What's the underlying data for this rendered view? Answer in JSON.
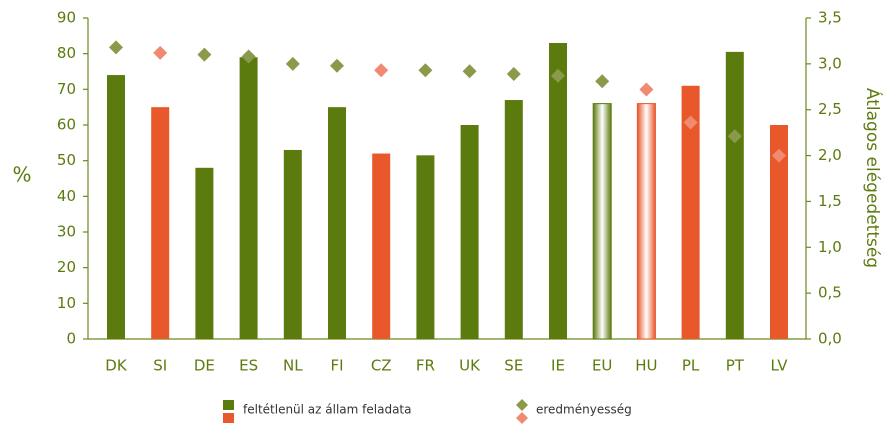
{
  "chart_data": {
    "type": "bar",
    "categories": [
      "DK",
      "SI",
      "DE",
      "ES",
      "NL",
      "FI",
      "CZ",
      "FR",
      "UK",
      "SE",
      "IE",
      "EU",
      "HU",
      "PL",
      "PT",
      "LV"
    ],
    "y_label": "%",
    "y2_label": "Átlagos elégedettség",
    "ylim": [
      0,
      90
    ],
    "yticks": [
      0,
      10,
      20,
      30,
      40,
      50,
      60,
      70,
      80,
      90
    ],
    "y2lim": [
      0,
      3.5
    ],
    "y2ticks": [
      {
        "value": 0,
        "label": "0,0"
      },
      {
        "value": 0.5,
        "label": "0,5"
      },
      {
        "value": 1,
        "label": "1,0"
      },
      {
        "value": 1.5,
        "label": "1,5"
      },
      {
        "value": 2,
        "label": "2,0"
      },
      {
        "value": 2.5,
        "label": "2,5"
      },
      {
        "value": 3,
        "label": "3,0"
      },
      {
        "value": 3.5,
        "label": "3,5"
      }
    ],
    "series": [
      {
        "name": "feltétlenül az állam feladata",
        "type": "bar",
        "legend_colors": [
          "#5c7b0f",
          "#e8582a"
        ],
        "values": [
          74,
          65,
          48,
          79,
          53,
          65,
          52,
          51.5,
          60,
          67,
          83,
          66,
          66,
          71,
          80.5,
          60
        ],
        "colors": [
          "#5c7b0f",
          "#e8582a",
          "#5c7b0f",
          "#5c7b0f",
          "#5c7b0f",
          "#5c7b0f",
          "#e8582a",
          "#5c7b0f",
          "#5c7b0f",
          "#5c7b0f",
          "#5c7b0f",
          "#5c7b0f",
          "#e8582a",
          "#e8582a",
          "#5c7b0f",
          "#e8582a"
        ],
        "fill_styles": [
          "solid",
          "solid",
          "solid",
          "solid",
          "solid",
          "solid",
          "solid",
          "solid",
          "solid",
          "solid",
          "solid",
          "gradient",
          "gradient",
          "solid",
          "solid",
          "solid"
        ]
      },
      {
        "name": "eredményesség",
        "type": "scatter",
        "axis": "y2",
        "legend_colors": [
          "#8a9a4a",
          "#f08a70"
        ],
        "values": [
          3.18,
          3.12,
          3.1,
          3.08,
          3.0,
          2.98,
          2.93,
          2.93,
          2.92,
          2.89,
          2.87,
          2.81,
          2.72,
          2.36,
          2.21,
          2.0
        ],
        "colors": [
          "#8a9a4a",
          "#f08a70",
          "#8a9a4a",
          "#8a9a4a",
          "#8a9a4a",
          "#8a9a4a",
          "#f08a70",
          "#8a9a4a",
          "#8a9a4a",
          "#8a9a4a",
          "#8a9a4a",
          "#8a9a4a",
          "#f08a70",
          "#f08a70",
          "#8a9a4a",
          "#f08a70"
        ]
      }
    ]
  }
}
